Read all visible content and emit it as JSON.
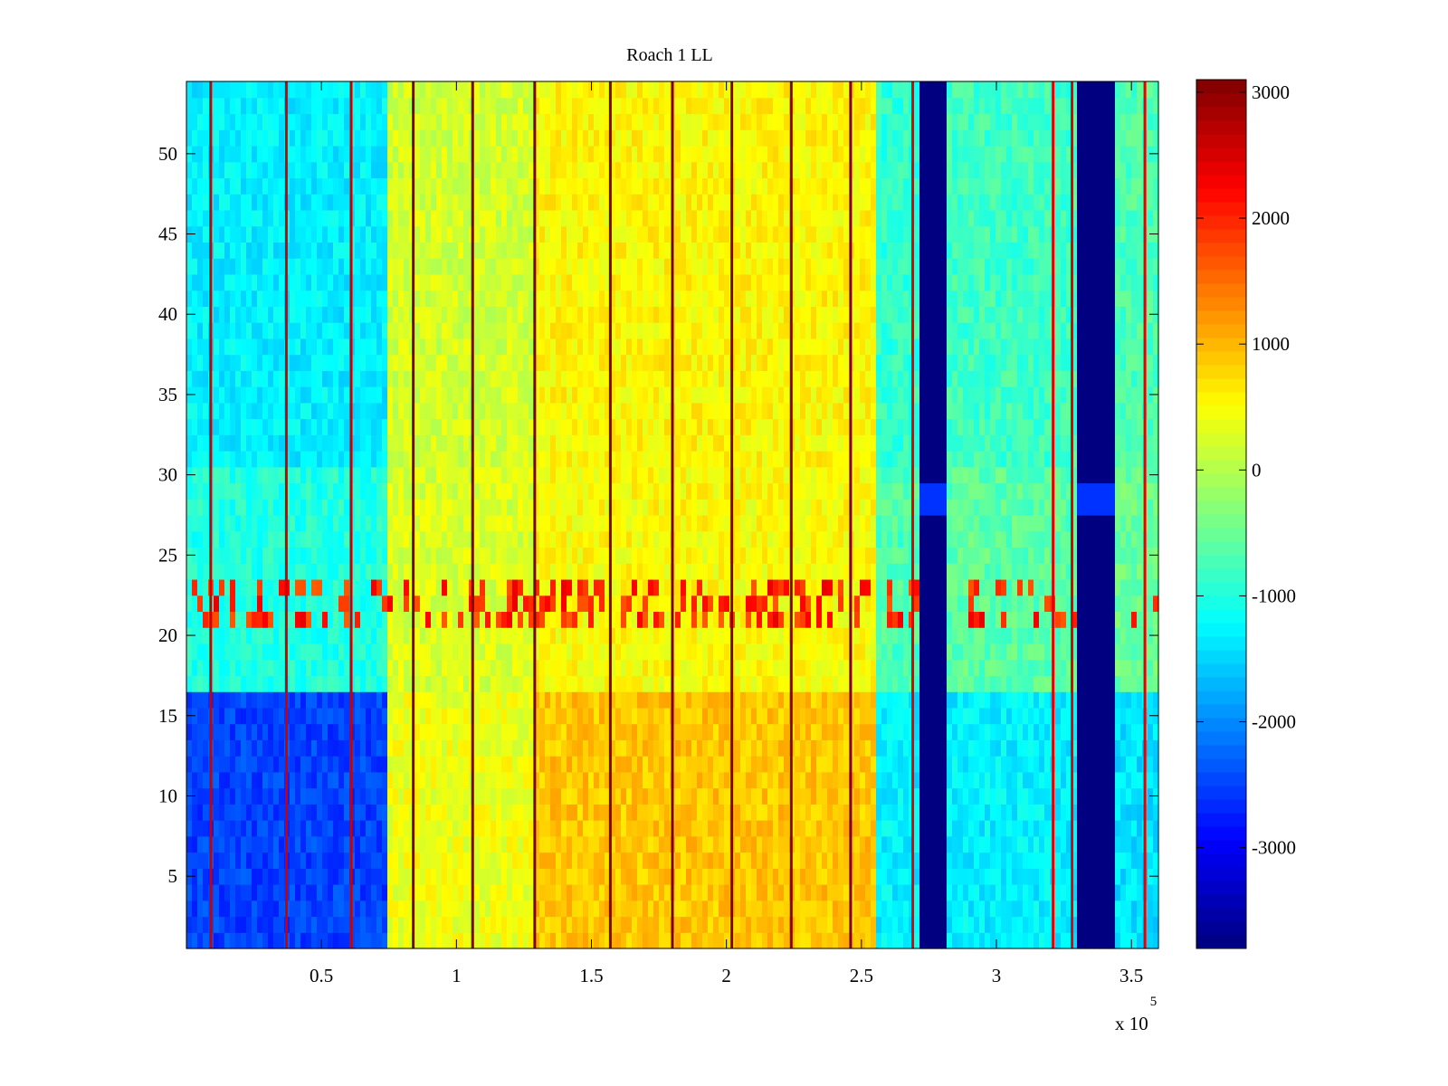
{
  "chart_data": {
    "type": "heatmap",
    "title": "Roach 1 LL",
    "xlabel": "",
    "ylabel": "",
    "xlim": [
      0,
      360000
    ],
    "ylim": [
      0.5,
      54.5
    ],
    "x_exponent_label": "x 10",
    "x_exponent_power": "5",
    "x_ticks": [
      {
        "value": 0.5,
        "label": "0.5"
      },
      {
        "value": 1,
        "label": "1"
      },
      {
        "value": 1.5,
        "label": "1.5"
      },
      {
        "value": 2,
        "label": "2"
      },
      {
        "value": 2.5,
        "label": "2.5"
      },
      {
        "value": 3,
        "label": "3"
      },
      {
        "value": 3.5,
        "label": "3.5"
      }
    ],
    "y_ticks": [
      {
        "value": 5,
        "label": "5"
      },
      {
        "value": 10,
        "label": "10"
      },
      {
        "value": 15,
        "label": "15"
      },
      {
        "value": 20,
        "label": "20"
      },
      {
        "value": 25,
        "label": "25"
      },
      {
        "value": 30,
        "label": "30"
      },
      {
        "value": 35,
        "label": "35"
      },
      {
        "value": 40,
        "label": "40"
      },
      {
        "value": 45,
        "label": "45"
      },
      {
        "value": 50,
        "label": "50"
      }
    ],
    "colorbar": {
      "colormap": "jet",
      "range": [
        -3800,
        3100
      ],
      "ticks": [
        {
          "value": 3000,
          "label": "3000"
        },
        {
          "value": 2000,
          "label": "2000"
        },
        {
          "value": 1000,
          "label": "1000"
        },
        {
          "value": 0,
          "label": "0"
        },
        {
          "value": -1000,
          "label": "-1000"
        },
        {
          "value": -2000,
          "label": "-2000"
        },
        {
          "value": -3000,
          "label": "-3000"
        }
      ]
    },
    "segments": [
      {
        "x_start": 0,
        "x_end": 75000,
        "low_rows": -2500,
        "mid_rows": -1000,
        "high_rows": -1300
      },
      {
        "x_start": 75000,
        "x_end": 128000,
        "low_rows": 400,
        "mid_rows": 250,
        "high_rows": 200
      },
      {
        "x_start": 128000,
        "x_end": 255000,
        "low_rows": 900,
        "mid_rows": 500,
        "high_rows": 550
      },
      {
        "x_start": 255000,
        "x_end": 272000,
        "low_rows": -1300,
        "mid_rows": -700,
        "high_rows": -900
      },
      {
        "x_start": 272000,
        "x_end": 282000,
        "low_rows": -3800,
        "mid_rows": -3800,
        "high_rows": -3800
      },
      {
        "x_start": 282000,
        "x_end": 330000,
        "low_rows": -1300,
        "mid_rows": -600,
        "high_rows": -800
      },
      {
        "x_start": 330000,
        "x_end": 343000,
        "low_rows": -3800,
        "mid_rows": -3800,
        "high_rows": -3800
      },
      {
        "x_start": 343000,
        "x_end": 360000,
        "low_rows": -1400,
        "mid_rows": -500,
        "high_rows": -700
      }
    ],
    "vertical_lines": [
      {
        "x": 9000,
        "value": 2600
      },
      {
        "x": 37000,
        "value": 2600
      },
      {
        "x": 61000,
        "value": 2600
      },
      {
        "x": 84000,
        "value": 3100
      },
      {
        "x": 106000,
        "value": 3100
      },
      {
        "x": 129000,
        "value": 3100
      },
      {
        "x": 157000,
        "value": 3100
      },
      {
        "x": 180000,
        "value": 3100
      },
      {
        "x": 202000,
        "value": 3100
      },
      {
        "x": 224000,
        "value": 3100
      },
      {
        "x": 246000,
        "value": 3100
      },
      {
        "x": 269000,
        "value": 2400
      },
      {
        "x": 321000,
        "value": 2400
      },
      {
        "x": 328000,
        "value": 2400
      },
      {
        "x": 355000,
        "value": 2400
      }
    ],
    "hot_band": {
      "y_start": 20.5,
      "y_end": 23.5,
      "value": 2400
    }
  }
}
